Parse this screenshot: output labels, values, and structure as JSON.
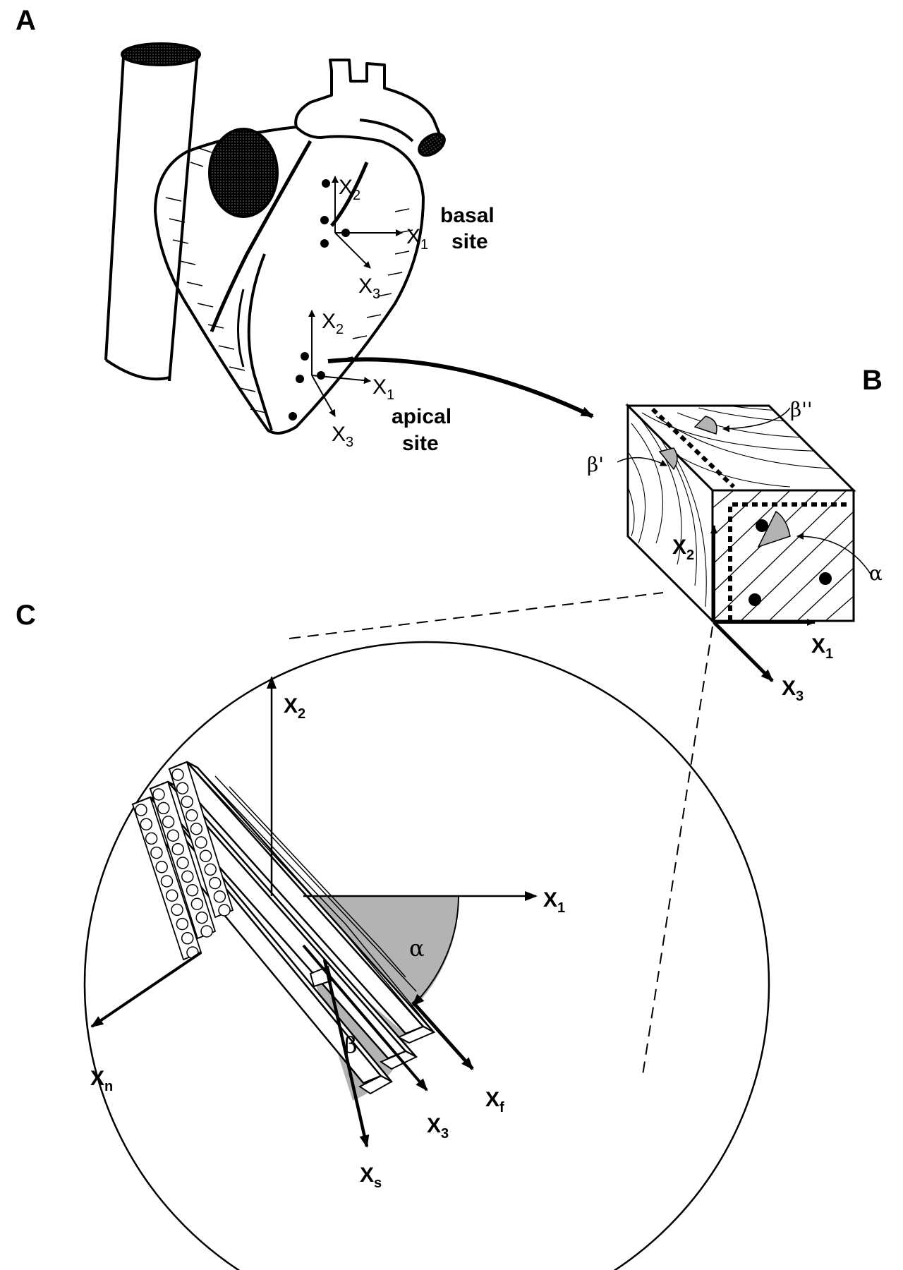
{
  "panels": {
    "a": "A",
    "b": "B",
    "c": "C"
  },
  "panel_a": {
    "basal_line1": "basal",
    "basal_line2": "site",
    "apical_line1": "apical",
    "apical_line2": "site",
    "basal_axes": {
      "x2": "X",
      "x2_sub": "2",
      "x1": "X",
      "x1_sub": "1",
      "x3": "X",
      "x3_sub": "3"
    },
    "apical_axes": {
      "x2": "X",
      "x2_sub": "2",
      "x1": "X",
      "x1_sub": "1",
      "x3": "X",
      "x3_sub": "3"
    }
  },
  "panel_b": {
    "beta_double_prime": "β''",
    "beta_prime": "β'",
    "alpha": "α",
    "x2": "X",
    "x2_sub": "2",
    "x1": "X",
    "x1_sub": "1",
    "x3": "X",
    "x3_sub": "3"
  },
  "panel_c": {
    "x2": "X",
    "x2_sub": "2",
    "x1": "X",
    "x1_sub": "1",
    "xn": "X",
    "xn_sub": "n",
    "xf": "X",
    "xf_sub": "f",
    "x3": "X",
    "x3_sub": "3",
    "xs": "X",
    "xs_sub": "s",
    "alpha": "α",
    "beta": "β"
  },
  "colors": {
    "ink": "#000000",
    "angle_fill": "#b3b3b3",
    "paper": "#ffffff"
  }
}
